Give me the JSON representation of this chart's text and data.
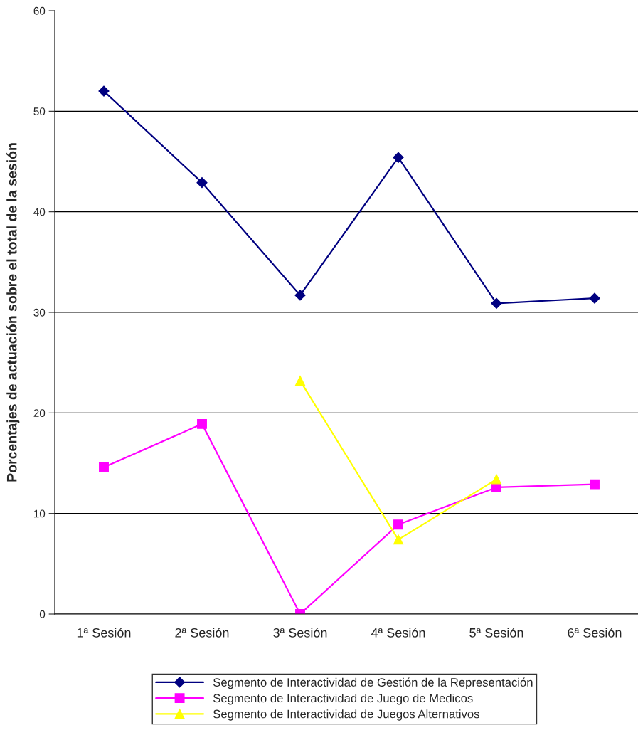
{
  "chart_data": {
    "type": "line",
    "ylabel": "Porcentajes de actuación sobre el total de la sesión",
    "categories": [
      "1ª Sesión",
      "2ª Sesión",
      "3ª Sesión",
      "4ª Sesión",
      "5ª Sesión",
      "6ª Sesión"
    ],
    "series": [
      {
        "name": "Segmento de Interactividad de Gestión de la Representación",
        "color": "#000080",
        "marker": "diamond",
        "values": [
          52.0,
          42.9,
          31.7,
          45.4,
          30.9,
          31.4
        ]
      },
      {
        "name": "Segmento de Interactividad de Juego de Medicos",
        "color": "#ff00ff",
        "marker": "square",
        "values": [
          14.6,
          18.9,
          0,
          8.9,
          12.6,
          12.9
        ]
      },
      {
        "name": "Segmento de Interactividad de Juegos Alternativos",
        "color": "#ffff00",
        "marker": "triangle",
        "values": [
          null,
          null,
          23.2,
          7.4,
          13.4,
          null
        ]
      }
    ],
    "ylim": [
      0,
      60
    ],
    "yticks": [
      0,
      10,
      20,
      30,
      40,
      50,
      60
    ],
    "grid": "y",
    "legend": "bottom",
    "line_style": "solid"
  }
}
